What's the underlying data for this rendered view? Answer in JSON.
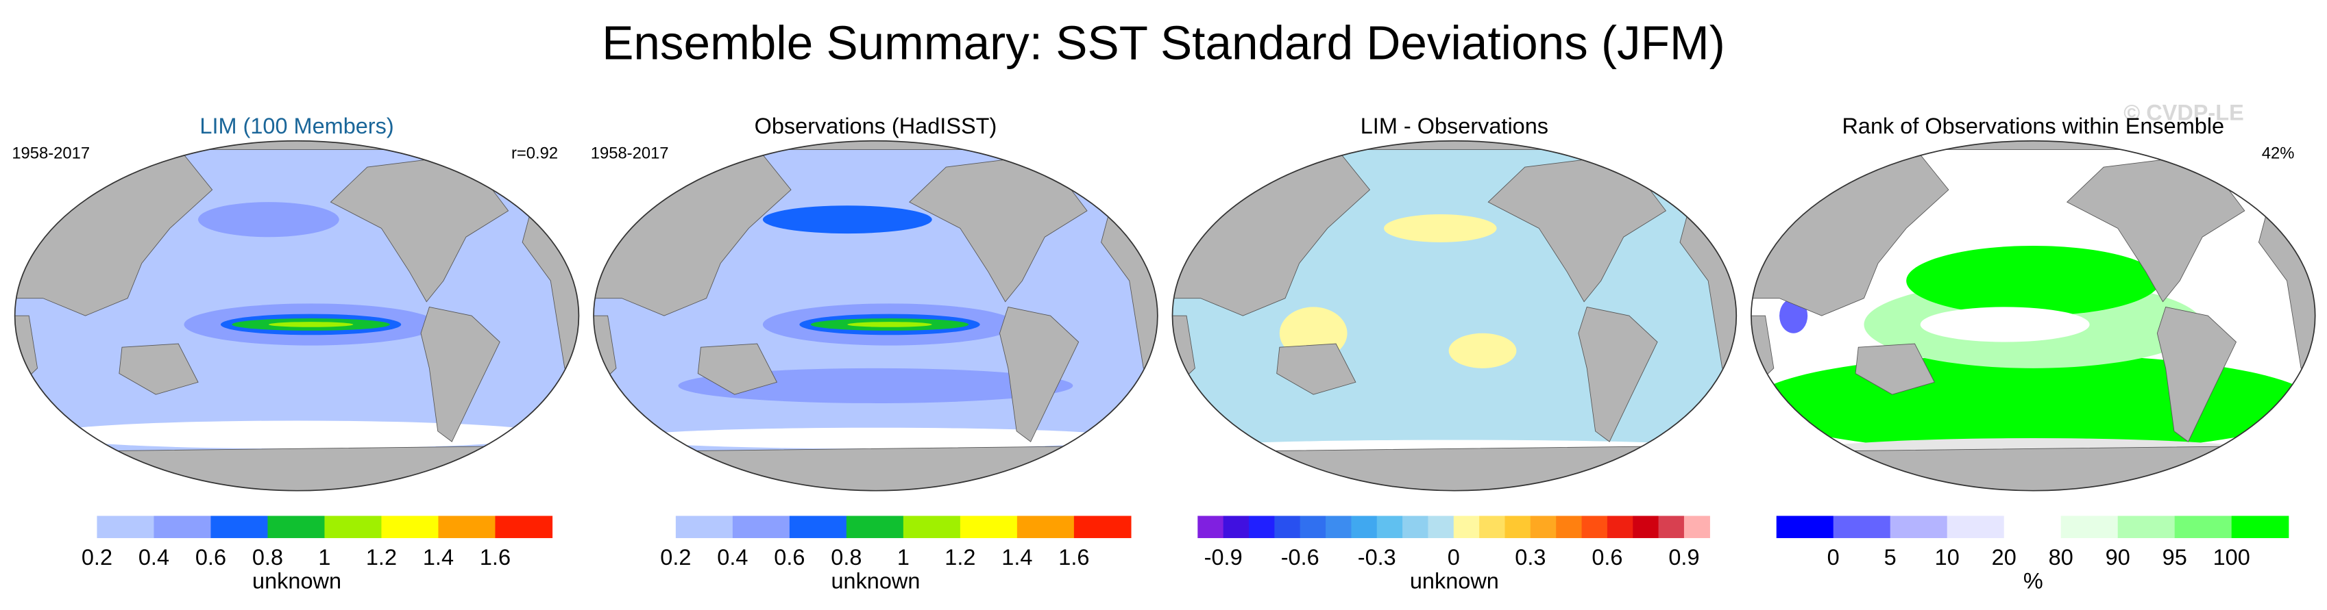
{
  "title": "Ensemble Summary: SST Standard Deviations (JFM)",
  "watermark": "© CVDP-LE",
  "panels": [
    {
      "title": "LIM (100 Members)",
      "title_color": "#1a6699",
      "left_label": "1958-2017",
      "right_label": "r=0.92",
      "ocean_color": "#b4c8ff",
      "colorbar": {
        "colors": [
          "#ffffff",
          "#b4c8ff",
          "#8ca0ff",
          "#1464ff",
          "#10c030",
          "#a0f000",
          "#ffff00",
          "#ffa000",
          "#ff2000"
        ],
        "ticks": [
          "0.2",
          "0.4",
          "0.6",
          "0.8",
          "1",
          "1.2",
          "1.4",
          "1.6"
        ],
        "label": "unknown"
      }
    },
    {
      "title": "Observations (HadISST)",
      "title_color": "#000000",
      "left_label": "1958-2017",
      "ocean_color": "#b4c8ff",
      "colorbar": {
        "colors": [
          "#ffffff",
          "#b4c8ff",
          "#8ca0ff",
          "#1464ff",
          "#10c030",
          "#a0f000",
          "#ffff00",
          "#ffa000",
          "#ff2000"
        ],
        "ticks": [
          "0.2",
          "0.4",
          "0.6",
          "0.8",
          "1",
          "1.2",
          "1.4",
          "1.6"
        ],
        "label": "unknown"
      }
    },
    {
      "title": "LIM - Observations",
      "title_color": "#000000",
      "ocean_color": "#b4e0f0",
      "colorbar": {
        "colors": [
          "#8020e0",
          "#4010e0",
          "#2020ff",
          "#2850f0",
          "#3070f0",
          "#3c8cf0",
          "#40a8f0",
          "#60c0f0",
          "#90d0f0",
          "#b4e0f0",
          "#fff8a0",
          "#ffe060",
          "#ffc830",
          "#ffa820",
          "#ff8010",
          "#ff5010",
          "#f02010",
          "#d00010",
          "#d84050",
          "#ffb0b0"
        ],
        "ticks": [
          "-0.9",
          "-0.6",
          "-0.3",
          "0",
          "0.3",
          "0.6",
          "0.9"
        ],
        "label": "unknown"
      }
    },
    {
      "title": "Rank of Observations within Ensemble",
      "title_color": "#000000",
      "right_label": "42%",
      "ocean_color": "#ffffff",
      "colorbar": {
        "colors": [
          "#0000ff",
          "#6464ff",
          "#b4b4ff",
          "#e6e6ff",
          "#ffffff",
          "#e6ffe6",
          "#b4ffb4",
          "#78ff78",
          "#00ff00"
        ],
        "ticks": [
          "0",
          "5",
          "10",
          "20",
          "80",
          "90",
          "95",
          "100"
        ],
        "label": "%"
      }
    }
  ]
}
